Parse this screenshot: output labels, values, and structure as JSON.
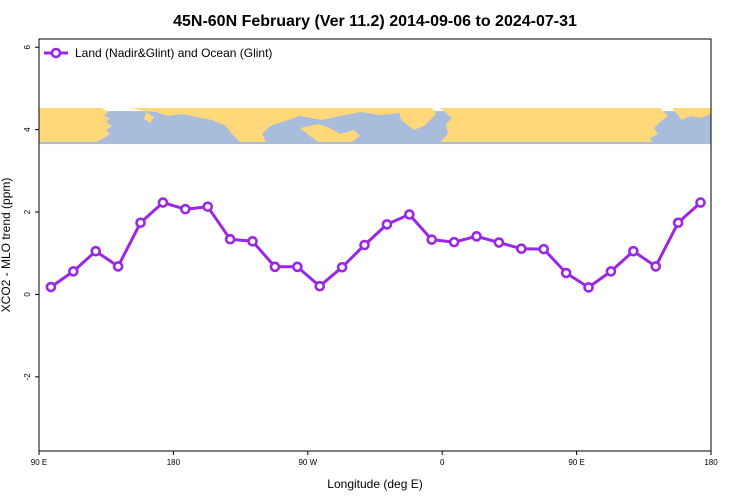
{
  "chart_data": {
    "type": "line",
    "title": "45N-60N February (Ver 11.2)   2014-09-06 to 2024-07-31",
    "xlabel": "Longitude (deg E)",
    "ylabel": "XCO2 - MLO trend (ppm)",
    "xlim": [
      90,
      540
    ],
    "ylim": [
      -3.8,
      6.2
    ],
    "x_ticks": [
      {
        "value": 90,
        "label": "90 E"
      },
      {
        "value": 180,
        "label": "180"
      },
      {
        "value": 270,
        "label": "90 W"
      },
      {
        "value": 360,
        "label": "0"
      },
      {
        "value": 450,
        "label": "90 E"
      },
      {
        "value": 540,
        "label": "180"
      }
    ],
    "y_ticks": [
      {
        "value": -2,
        "label": "-2"
      },
      {
        "value": 0,
        "label": "0"
      },
      {
        "value": 2,
        "label": "2"
      },
      {
        "value": 4,
        "label": "4"
      },
      {
        "value": 6,
        "label": "6"
      }
    ],
    "legend": {
      "placement": "top-left",
      "label": "Land (Nadir&Glint) and Ocean (Glint)"
    },
    "map_strip": {
      "ymin": 3.65,
      "ymax": 4.45,
      "land_color": "#FFD87A",
      "ocean_color": "#A8BCDB"
    },
    "series": [
      {
        "name": "Land (Nadir&Glint) and Ocean (Glint)",
        "color": "#9B27E6",
        "x": [
          98,
          113,
          128,
          143,
          158,
          173,
          188,
          203,
          218,
          233,
          248,
          263,
          278,
          293,
          308,
          323,
          338,
          353,
          368,
          383,
          398,
          413,
          428,
          443,
          458,
          473,
          488,
          503,
          518,
          533
        ],
        "y": [
          0.18,
          0.56,
          1.05,
          0.68,
          1.74,
          2.23,
          2.07,
          2.13,
          1.34,
          1.29,
          0.67,
          0.67,
          0.2,
          0.66,
          1.2,
          1.7,
          1.94,
          1.33,
          1.27,
          1.41,
          1.26,
          1.11,
          1.1,
          0.52,
          0.17,
          0.56,
          1.05,
          0.68,
          1.74,
          2.23
        ]
      }
    ]
  }
}
